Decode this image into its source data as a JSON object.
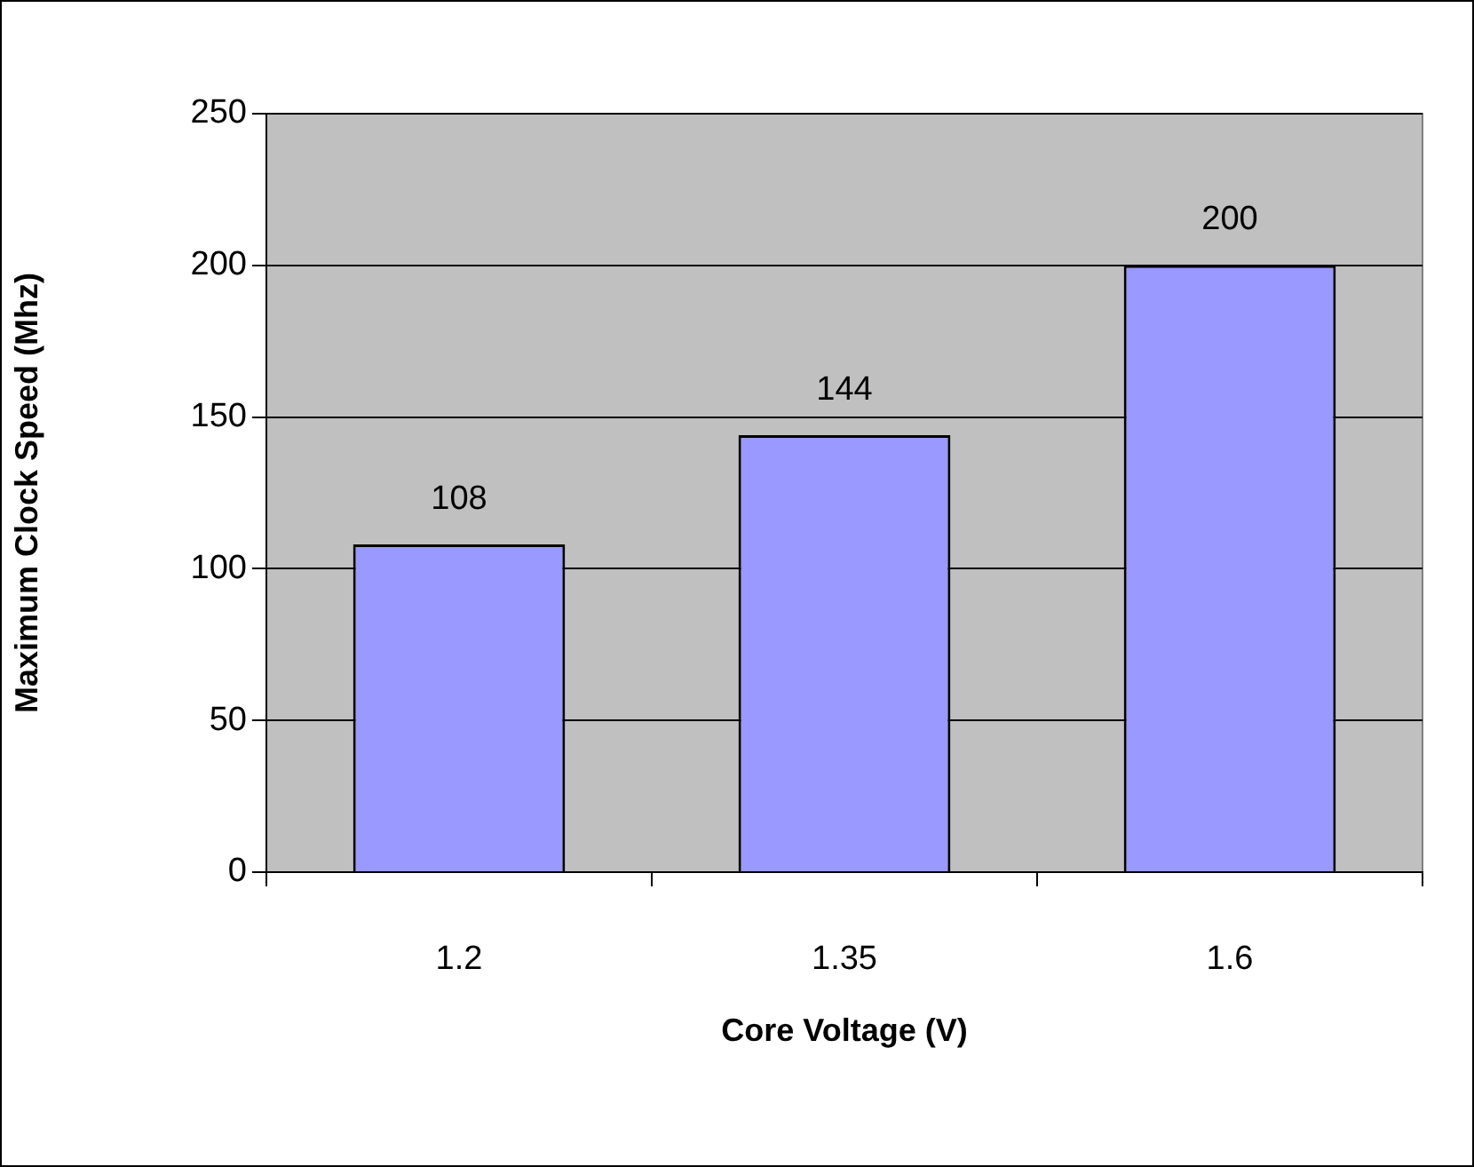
{
  "chart_data": {
    "type": "bar",
    "xlabel": "Core Voltage (V)",
    "ylabel": "Maximum Clock Speed (Mhz)",
    "categories": [
      "1.2",
      "1.35",
      "1.6"
    ],
    "values": [
      108,
      144,
      200
    ],
    "color": "#9999ff",
    "ylim": [
      0,
      250
    ],
    "yticks": [
      0,
      50,
      100,
      150,
      200,
      250
    ],
    "grid": "y",
    "data_labels": true,
    "legend": false
  }
}
